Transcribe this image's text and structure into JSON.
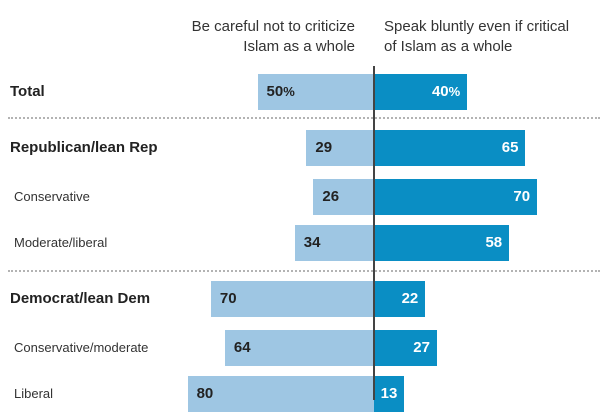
{
  "headers": {
    "left": [
      "Be careful not to criticize",
      "Islam as a whole"
    ],
    "right": [
      "Speak bluntly even if critical",
      "of Islam as a whole"
    ]
  },
  "colors": {
    "left_bar": "#9ec6e3",
    "right_bar": "#0a8ec4",
    "divider": "#b3b3b3",
    "axis": "#444444"
  },
  "chart_data": {
    "type": "bar",
    "orientation": "horizontal-diverging",
    "categories": [
      "Total",
      "Republican/lean Rep",
      "Conservative",
      "Moderate/liberal",
      "Democrat/lean Dem",
      "Conservative/moderate",
      "Liberal"
    ],
    "series": [
      {
        "name": "Be careful not to criticize Islam as a whole",
        "values": [
          50,
          29,
          26,
          34,
          70,
          64,
          80
        ]
      },
      {
        "name": "Speak bluntly even if critical of Islam as a whole",
        "values": [
          40,
          65,
          70,
          58,
          22,
          27,
          13
        ]
      }
    ],
    "unit_suffix": "%"
  }
}
